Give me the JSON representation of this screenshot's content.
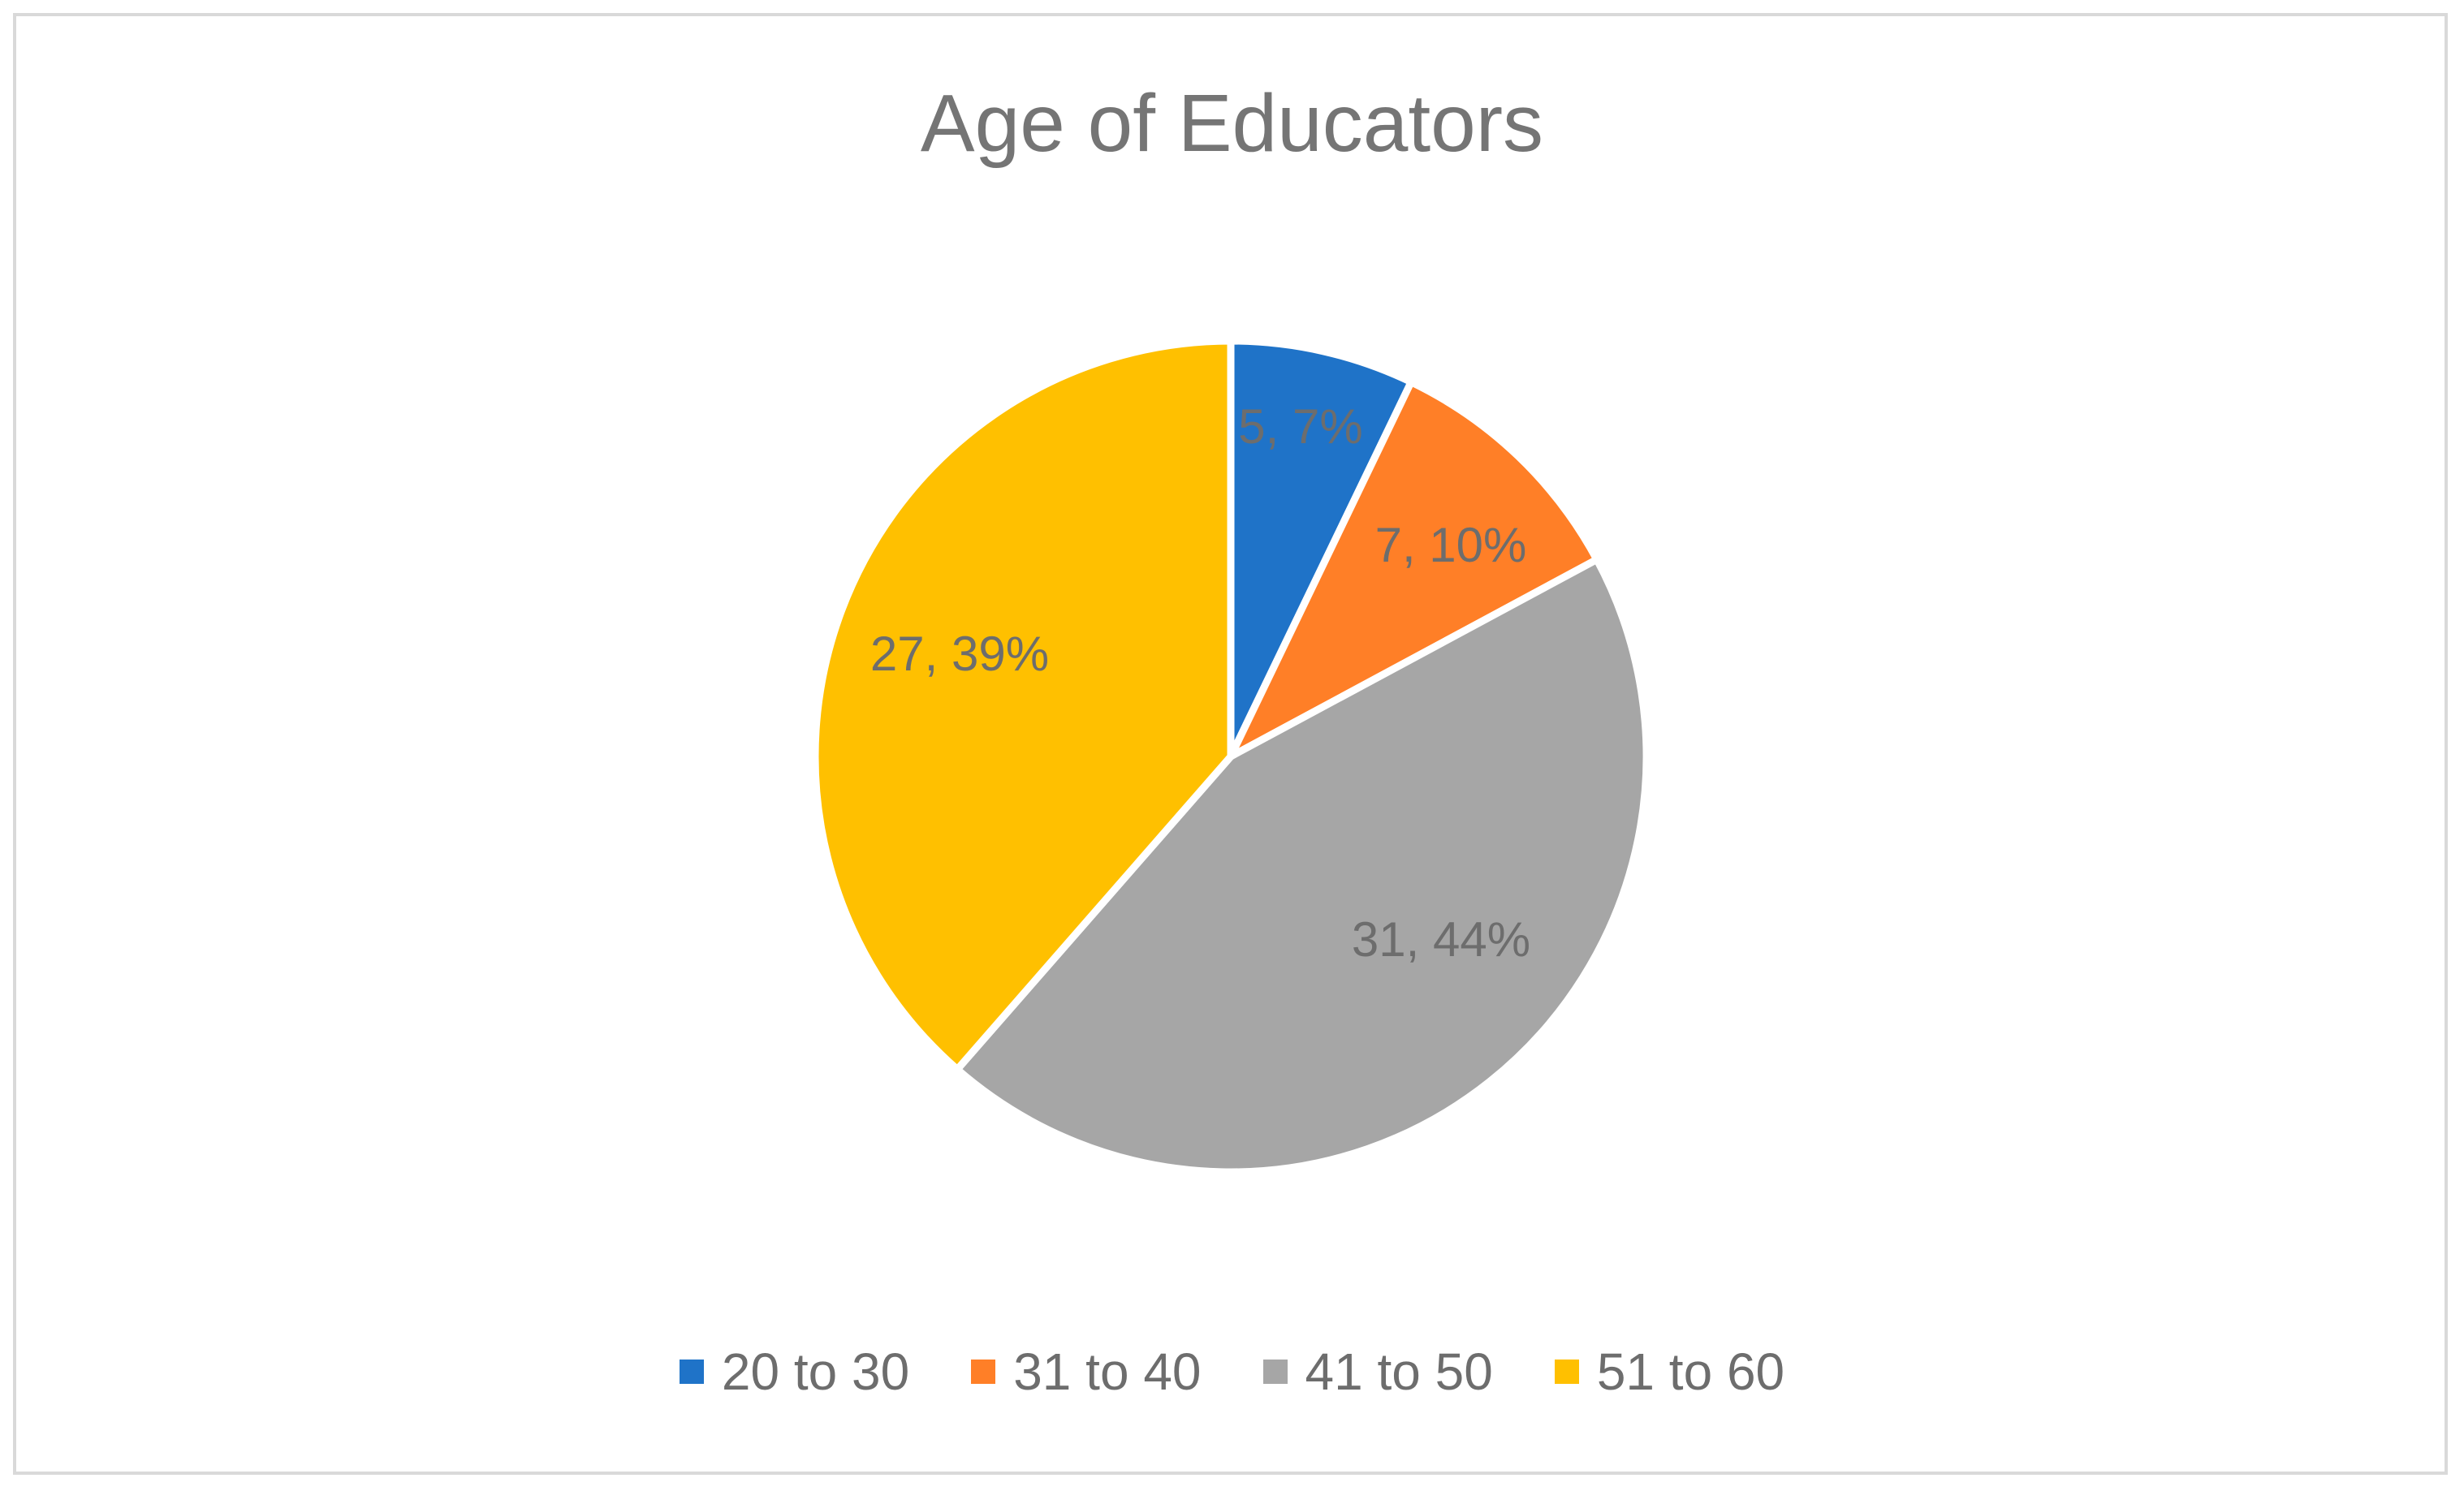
{
  "chart_data": {
    "type": "pie",
    "title": "Age of Educators",
    "categories": [
      "20 to 30",
      "31 to 40",
      "41 to 50",
      "51 to 60"
    ],
    "values": [
      5,
      7,
      31,
      27
    ],
    "percentages": [
      "7%",
      "10%",
      "44%",
      "39%"
    ],
    "data_labels": [
      "5, 7%",
      "7, 10%",
      "31, 44%",
      "27, 39%"
    ],
    "colors": [
      "#1f73c8",
      "#ff7f27",
      "#a6a6a6",
      "#ffc000"
    ],
    "label_color": "#6d6d6d",
    "legend_position": "bottom",
    "start_angle_deg": 0,
    "direction": "clockwise"
  }
}
